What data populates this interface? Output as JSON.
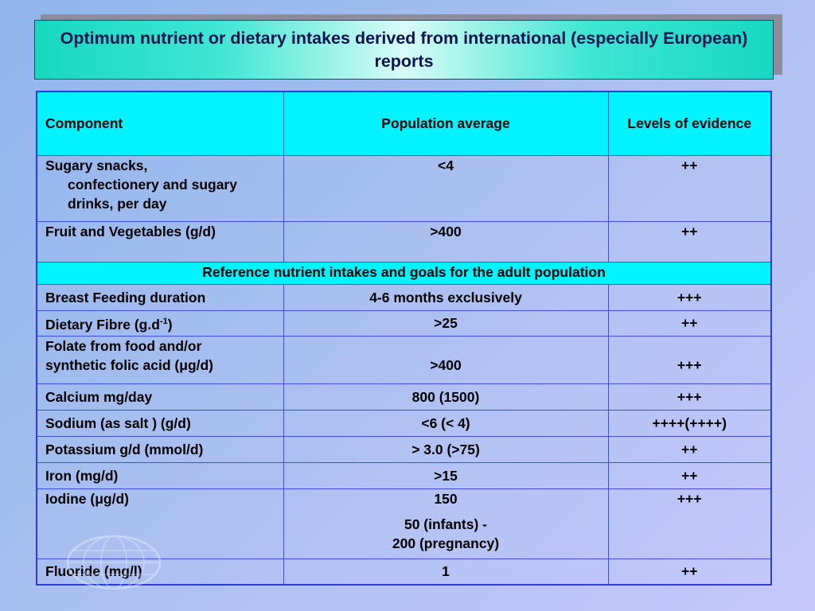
{
  "title": "Optimum nutrient or dietary intakes derived from international (especially European) reports",
  "headers": {
    "component": "Component",
    "population_average": "Population average",
    "levels_of_evidence": "Levels of evidence"
  },
  "rows_top": [
    {
      "component_line1": "Sugary snacks,",
      "component_rest": "confectionery and sugary drinks, per day",
      "average": "<4",
      "evidence": "++"
    },
    {
      "component": "Fruit  and Vegetables (g/d)",
      "average": ">400",
      "evidence": "++"
    }
  ],
  "reference_row": "Reference nutrient intakes and goals for the adult population",
  "rows": {
    "breast_feeding": {
      "component": "Breast Feeding duration",
      "average": "4-6 months exclusively",
      "evidence": "+++"
    },
    "fibre": {
      "component_prefix": "Dietary Fibre (g.d",
      "component_sup": "-1",
      "component_suffix": ")",
      "average": ">25",
      "evidence": "++"
    },
    "folate": {
      "component_line1": "Folate from food and/or",
      "component_line2": "synthetic folic acid (μg/d)",
      "average": ">400",
      "evidence": "+++"
    },
    "calcium": {
      "component": "Calcium mg/day",
      "average": "800 (1500)",
      "evidence": "+++"
    },
    "sodium": {
      "component": "Sodium (as salt ) (g/d)",
      "average": "<6  (< 4)",
      "evidence": "++++(++++)"
    },
    "potassium": {
      "component": "Potassium  g/d (mmol/d)",
      "average": "> 3.0 (>75)",
      "evidence": "++"
    },
    "iron": {
      "component": "Iron  (mg/d)",
      "average": ">15",
      "evidence": "++"
    },
    "iodine": {
      "component": "Iodine  (μg/d)",
      "average_line1": "150",
      "average_line2": "50 (infants) -",
      "average_line3": "200 (pregnancy)",
      "evidence": "+++"
    },
    "fluoride": {
      "component": "Fluoride (mg/l)",
      "average": "1",
      "evidence": "++"
    }
  },
  "colors": {
    "header_fill": "#00f3ff",
    "grid_line": "#3a4fe0",
    "title_text": "#0a1450"
  },
  "icons": {
    "watermark": "globe-emblem-icon"
  }
}
